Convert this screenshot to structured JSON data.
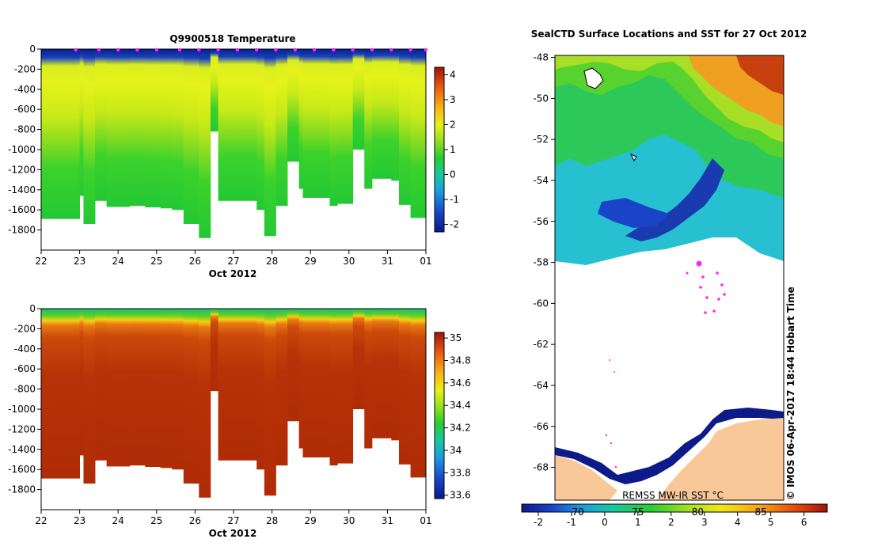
{
  "chart_data": [
    {
      "type": "heatmap",
      "name": "temperature-section",
      "title": "Q9900518  Temperature",
      "xlabel": "Oct 2012",
      "x_ticks": [
        "22",
        "23",
        "24",
        "25",
        "26",
        "27",
        "28",
        "29",
        "30",
        "31",
        "01"
      ],
      "xlim": [
        22,
        32
      ],
      "ylim": [
        -2000,
        0
      ],
      "y_ticks": [
        0,
        -200,
        -400,
        -600,
        -800,
        -1000,
        -1200,
        -1400,
        -1600,
        -1800
      ],
      "colorbar": {
        "min": -2.3,
        "max": 4.3,
        "ticks": [
          4,
          3,
          2,
          1,
          0,
          -1,
          -2
        ]
      },
      "surface_markers_day": [
        22.9,
        23.5,
        24.0,
        24.5,
        25.0,
        25.6,
        26.1,
        26.6,
        27.1,
        27.6,
        28.1,
        28.6,
        29.1,
        29.6,
        30.1,
        30.6,
        31.1,
        31.6,
        32.0
      ],
      "profiles": {
        "day": [
          22.0,
          22.5,
          23.0,
          23.1,
          23.4,
          23.7,
          23.9,
          24.3,
          24.7,
          25.1,
          25.4,
          25.7,
          26.1,
          26.4,
          26.6,
          27.0,
          27.3,
          27.6,
          27.8,
          28.1,
          28.4,
          28.7,
          28.8,
          29.2,
          29.5,
          29.7,
          30.1,
          30.4,
          30.6,
          30.9,
          31.1,
          31.3,
          31.6,
          31.9
        ],
        "depth": [
          1690,
          1690,
          1460,
          1740,
          1510,
          1570,
          1570,
          1560,
          1575,
          1585,
          1600,
          1740,
          1880,
          820,
          1510,
          1510,
          1510,
          1600,
          1860,
          1560,
          1120,
          1390,
          1480,
          1480,
          1560,
          1540,
          1000,
          1390,
          1290,
          1290,
          1310,
          1550,
          1680,
          1680
        ]
      }
    },
    {
      "type": "heatmap",
      "name": "salinity-section",
      "title": "",
      "xlabel": "Oct 2012",
      "x_ticks": [
        "22",
        "23",
        "24",
        "25",
        "26",
        "27",
        "28",
        "29",
        "30",
        "31",
        "01"
      ],
      "xlim": [
        22,
        32
      ],
      "ylim": [
        -2000,
        0
      ],
      "y_ticks": [
        0,
        -200,
        -400,
        -600,
        -800,
        -1000,
        -1200,
        -1400,
        -1600,
        -1800
      ],
      "colorbar": {
        "min": 33.57,
        "max": 35.05,
        "ticks": [
          "35",
          "34.8",
          "34.6",
          "34.4",
          "34.2",
          "34",
          "33.8",
          "33.6"
        ]
      },
      "profiles": {
        "day": [
          22.0,
          22.5,
          23.0,
          23.1,
          23.4,
          23.7,
          23.9,
          24.3,
          24.7,
          25.1,
          25.4,
          25.7,
          26.1,
          26.4,
          26.6,
          27.0,
          27.3,
          27.6,
          27.8,
          28.1,
          28.4,
          28.7,
          28.8,
          29.2,
          29.5,
          29.7,
          30.1,
          30.4,
          30.6,
          30.9,
          31.1,
          31.3,
          31.6,
          31.9
        ],
        "depth": [
          1690,
          1690,
          1460,
          1740,
          1510,
          1570,
          1570,
          1560,
          1575,
          1585,
          1600,
          1740,
          1880,
          820,
          1510,
          1510,
          1510,
          1600,
          1860,
          1560,
          1120,
          1390,
          1480,
          1480,
          1560,
          1540,
          1000,
          1390,
          1290,
          1290,
          1310,
          1550,
          1680,
          1680
        ]
      }
    },
    {
      "type": "heatmap",
      "name": "sst-map",
      "title": "SealCTD Surface Locations and SST for 27 Oct 2012",
      "ylabel": "",
      "lat_ticks": [
        "-48",
        "-50",
        "-52",
        "-54",
        "-56",
        "-58",
        "-60",
        "-62",
        "-64",
        "-66",
        "-68"
      ],
      "ylim": [
        -69.6,
        -47.9
      ],
      "colorbar": {
        "ticks": [
          "-2",
          "-1",
          "0",
          "1",
          "2",
          "3",
          "4",
          "5",
          "6"
        ],
        "range": [
          -2.5,
          6.7
        ],
        "fahrenheit_ticks": [
          "70",
          "75",
          "80",
          "85"
        ]
      },
      "source_label": "REMSS MW-IR SST °C",
      "timestamp": "© IMOS 06-Apr-2017 18:44 Hobart Time"
    }
  ]
}
